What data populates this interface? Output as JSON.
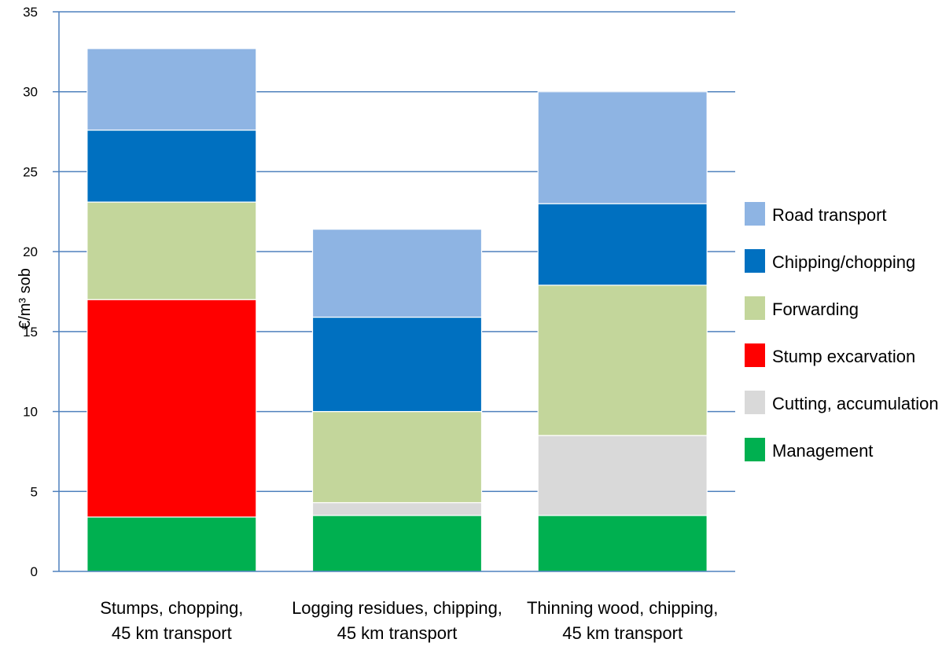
{
  "chart_data": {
    "type": "bar",
    "stacked": true,
    "title": "",
    "xlabel": "",
    "ylabel": "€/m³ sob",
    "ylim": [
      0,
      35
    ],
    "yticks": [
      0,
      5,
      10,
      15,
      20,
      25,
      30,
      35
    ],
    "grid": true,
    "legend_position": "right",
    "categories": [
      [
        "Stumps, chopping,",
        "45 km transport"
      ],
      [
        "Logging residues, chipping,",
        "45 km transport"
      ],
      [
        "Thinning wood, chipping,",
        "45 km transport"
      ]
    ],
    "series": [
      {
        "name": "Management",
        "color": "#00B050",
        "values": [
          3.4,
          3.5,
          3.5
        ]
      },
      {
        "name": "Cutting, accumulation",
        "color": "#D9D9D9",
        "values": [
          0,
          0.8,
          5.0
        ]
      },
      {
        "name": "Stump excarvation",
        "color": "#FF0000",
        "values": [
          13.6,
          0,
          0
        ]
      },
      {
        "name": "Forwarding",
        "color": "#C3D69B",
        "values": [
          6.1,
          5.7,
          9.4
        ]
      },
      {
        "name": "Chipping/chopping",
        "color": "#0070C0",
        "values": [
          4.5,
          5.9,
          5.1
        ]
      },
      {
        "name": "Road transport",
        "color": "#8EB4E3",
        "values": [
          5.1,
          5.5,
          7.0
        ]
      }
    ],
    "legend_order": [
      "Road transport",
      "Chipping/chopping",
      "Forwarding",
      "Stump excarvation",
      "Cutting, accumulation",
      "Management"
    ]
  }
}
